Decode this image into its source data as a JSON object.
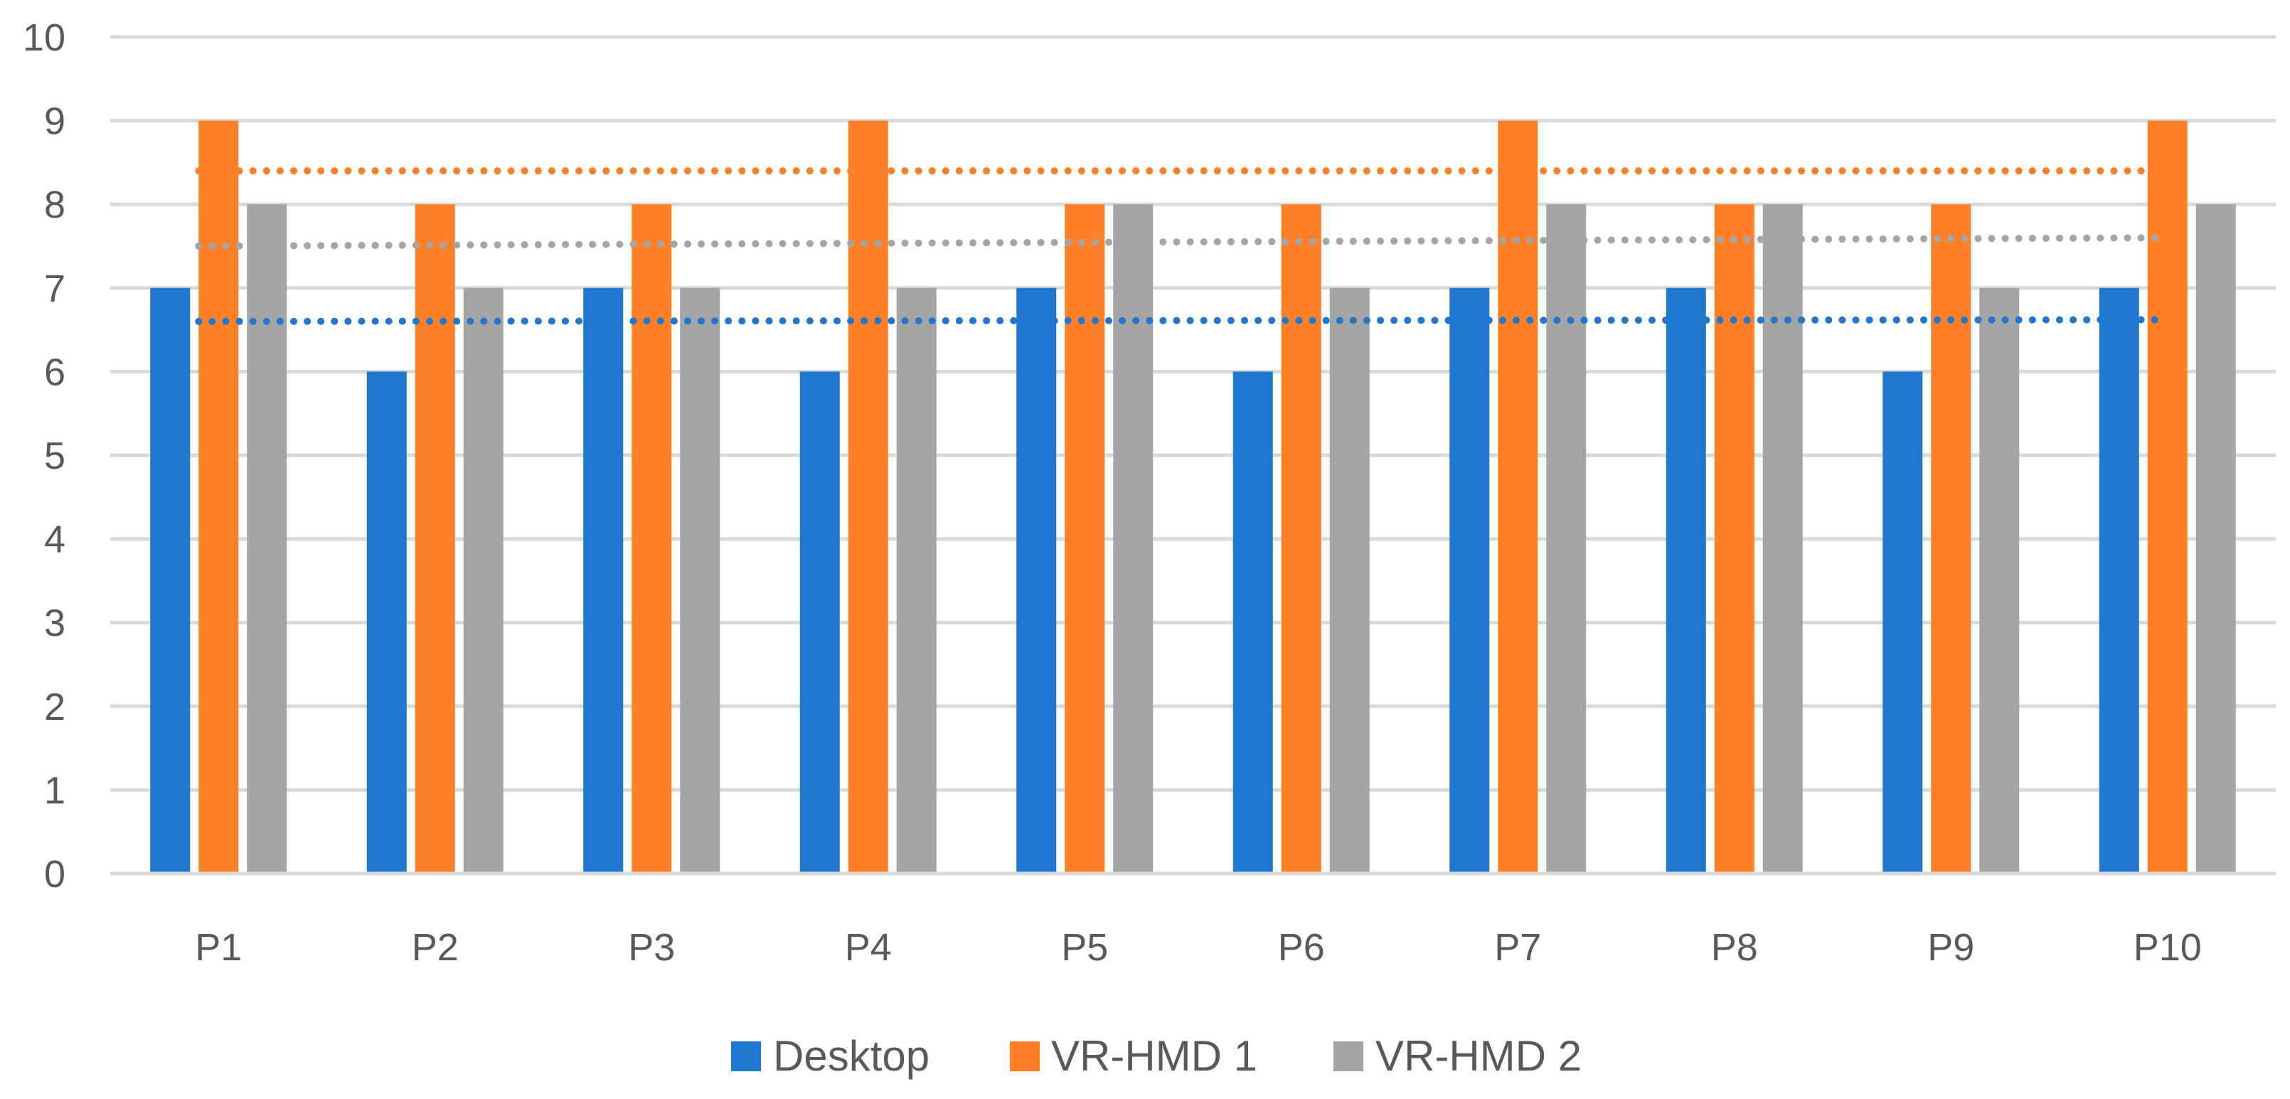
{
  "chart_data": {
    "type": "bar",
    "title": "",
    "xlabel": "",
    "ylabel": "",
    "categories": [
      "P1",
      "P2",
      "P3",
      "P4",
      "P5",
      "P6",
      "P7",
      "P8",
      "P9",
      "P10"
    ],
    "ylim": [
      0,
      10
    ],
    "yticks": [
      "0",
      "1",
      "2",
      "3",
      "4",
      "5",
      "6",
      "7",
      "8",
      "9",
      "10"
    ],
    "grid": true,
    "legend_position": "bottom",
    "series": [
      {
        "name": "Desktop",
        "color": "#1F77D0",
        "values": [
          7,
          6,
          7,
          6,
          7,
          6,
          7,
          7,
          6,
          7
        ]
      },
      {
        "name": "VR-HMD 1",
        "color": "#FF7F27",
        "values": [
          9,
          8,
          8,
          9,
          8,
          8,
          9,
          8,
          8,
          9
        ]
      },
      {
        "name": "VR-HMD 2",
        "color": "#A5A5A5",
        "values": [
          8,
          7,
          7,
          7,
          8,
          7,
          8,
          8,
          7,
          8
        ]
      }
    ],
    "trendlines": [
      {
        "series": "Desktop",
        "color": "#1F77D0",
        "start": 6.6,
        "end": 6.62,
        "style": "dotted"
      },
      {
        "series": "VR-HMD 1",
        "color": "#FF7F27",
        "start": 8.4,
        "end": 8.4,
        "style": "dotted"
      },
      {
        "series": "VR-HMD 2",
        "color": "#A5A5A5",
        "start": 7.5,
        "end": 7.6,
        "style": "dotted"
      }
    ]
  }
}
